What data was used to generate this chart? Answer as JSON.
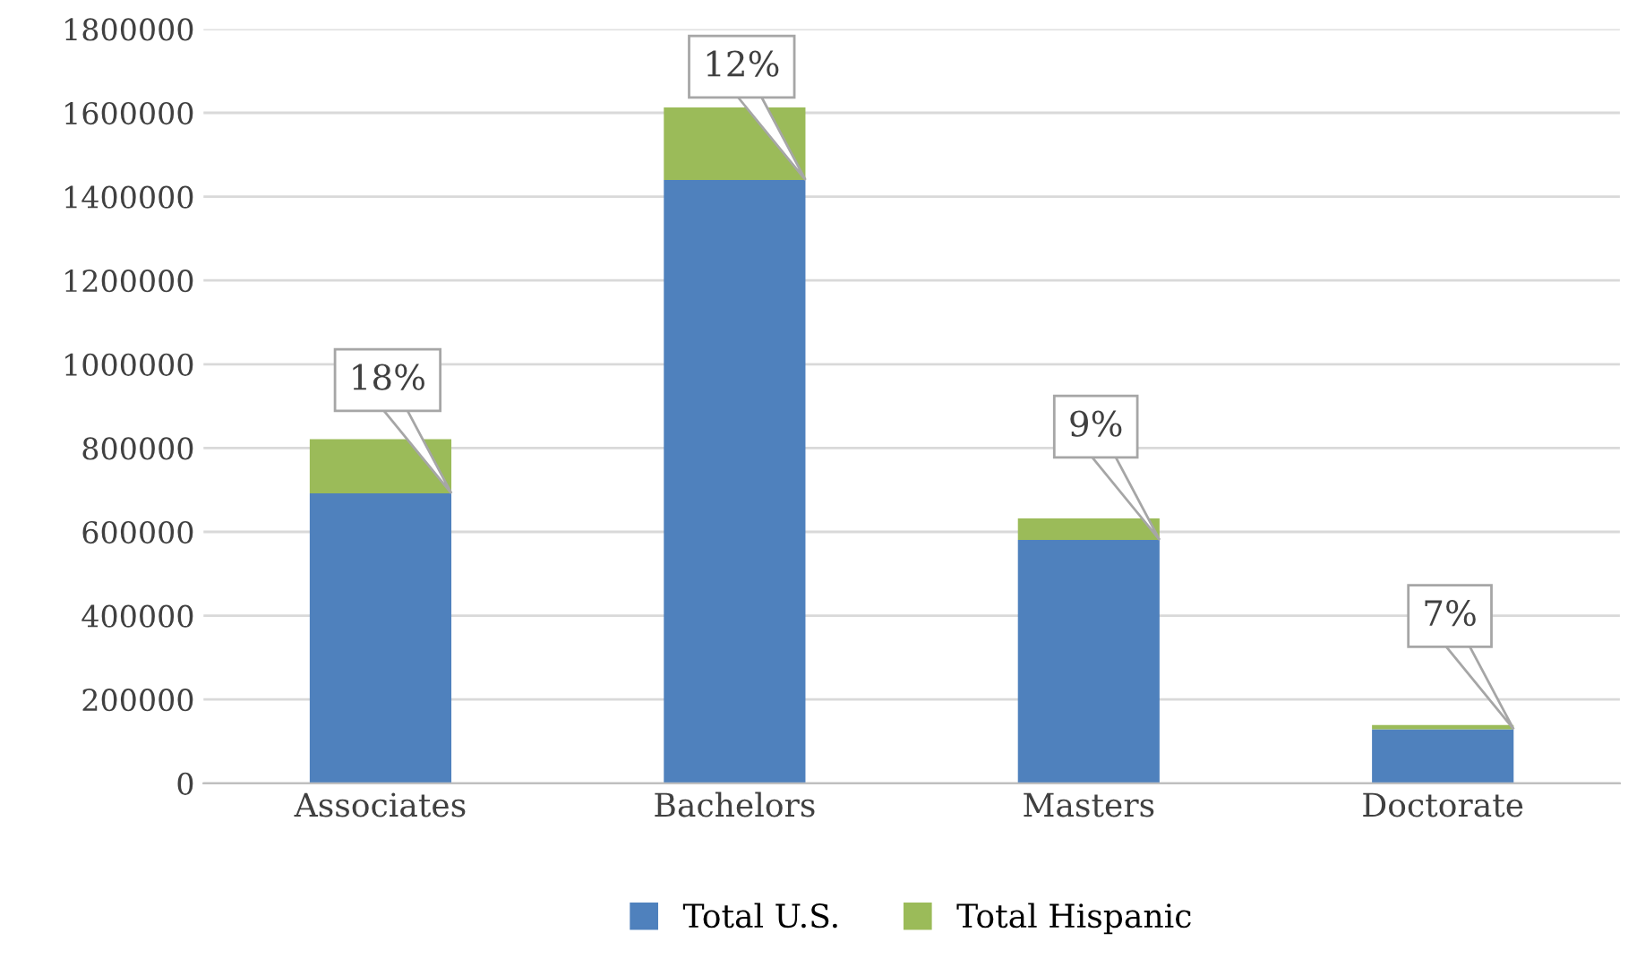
{
  "chart_data": {
    "type": "bar",
    "stacked": true,
    "categories": [
      "Associates",
      "Bachelors",
      "Masters",
      "Doctorate"
    ],
    "series": [
      {
        "name": "Total U.S.",
        "color": "#4f81bd",
        "values": [
          692000,
          1440000,
          581000,
          129000
        ]
      },
      {
        "name": "Total Hispanic",
        "color": "#9bbb59",
        "values": [
          129000,
          173000,
          51000,
          10000
        ]
      }
    ],
    "annotations": [
      {
        "text": "18%",
        "x": "Associates",
        "y": 692000
      },
      {
        "text": "12%",
        "x": "Bachelors",
        "y": 1440000
      },
      {
        "text": "9%",
        "x": "Masters",
        "y": 581000
      },
      {
        "text": "7%",
        "x": "Doctorate",
        "y": 129000
      }
    ],
    "ylim": [
      0,
      1800000
    ],
    "yticks": [
      0,
      200000,
      400000,
      600000,
      800000,
      1000000,
      1200000,
      1400000,
      1600000,
      1800000
    ],
    "grid": "y",
    "legend": "bottom"
  }
}
